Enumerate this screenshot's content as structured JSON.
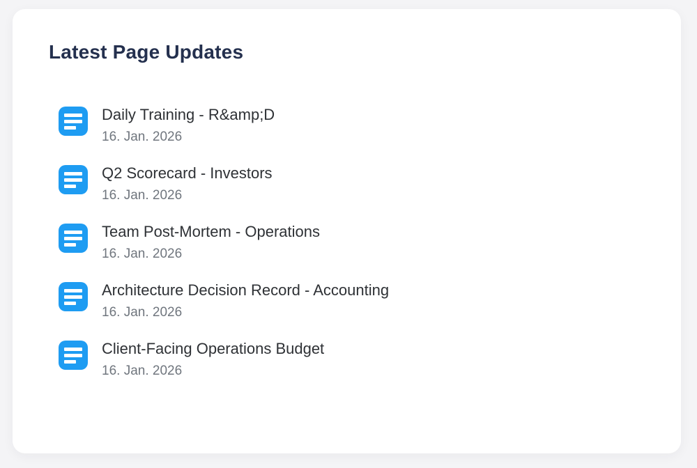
{
  "colors": {
    "page_background": "#f4f4f6",
    "card_background": "#ffffff",
    "heading": "#24304e",
    "title": "#2e3135",
    "date": "#70767e",
    "doc_icon_blue": "#1e9cf2"
  },
  "card": {
    "heading": "Latest Page Updates"
  },
  "updates": [
    {
      "title": "Daily Training - R&amp;D",
      "date": "16. Jan. 2026"
    },
    {
      "title": "Q2 Scorecard - Investors",
      "date": "16. Jan. 2026"
    },
    {
      "title": "Team Post-Mortem - Operations",
      "date": "16. Jan. 2026"
    },
    {
      "title": "Architecture Decision Record - Accounting",
      "date": "16. Jan. 2026"
    },
    {
      "title": "Client-Facing Operations Budget",
      "date": "16. Jan. 2026"
    }
  ]
}
